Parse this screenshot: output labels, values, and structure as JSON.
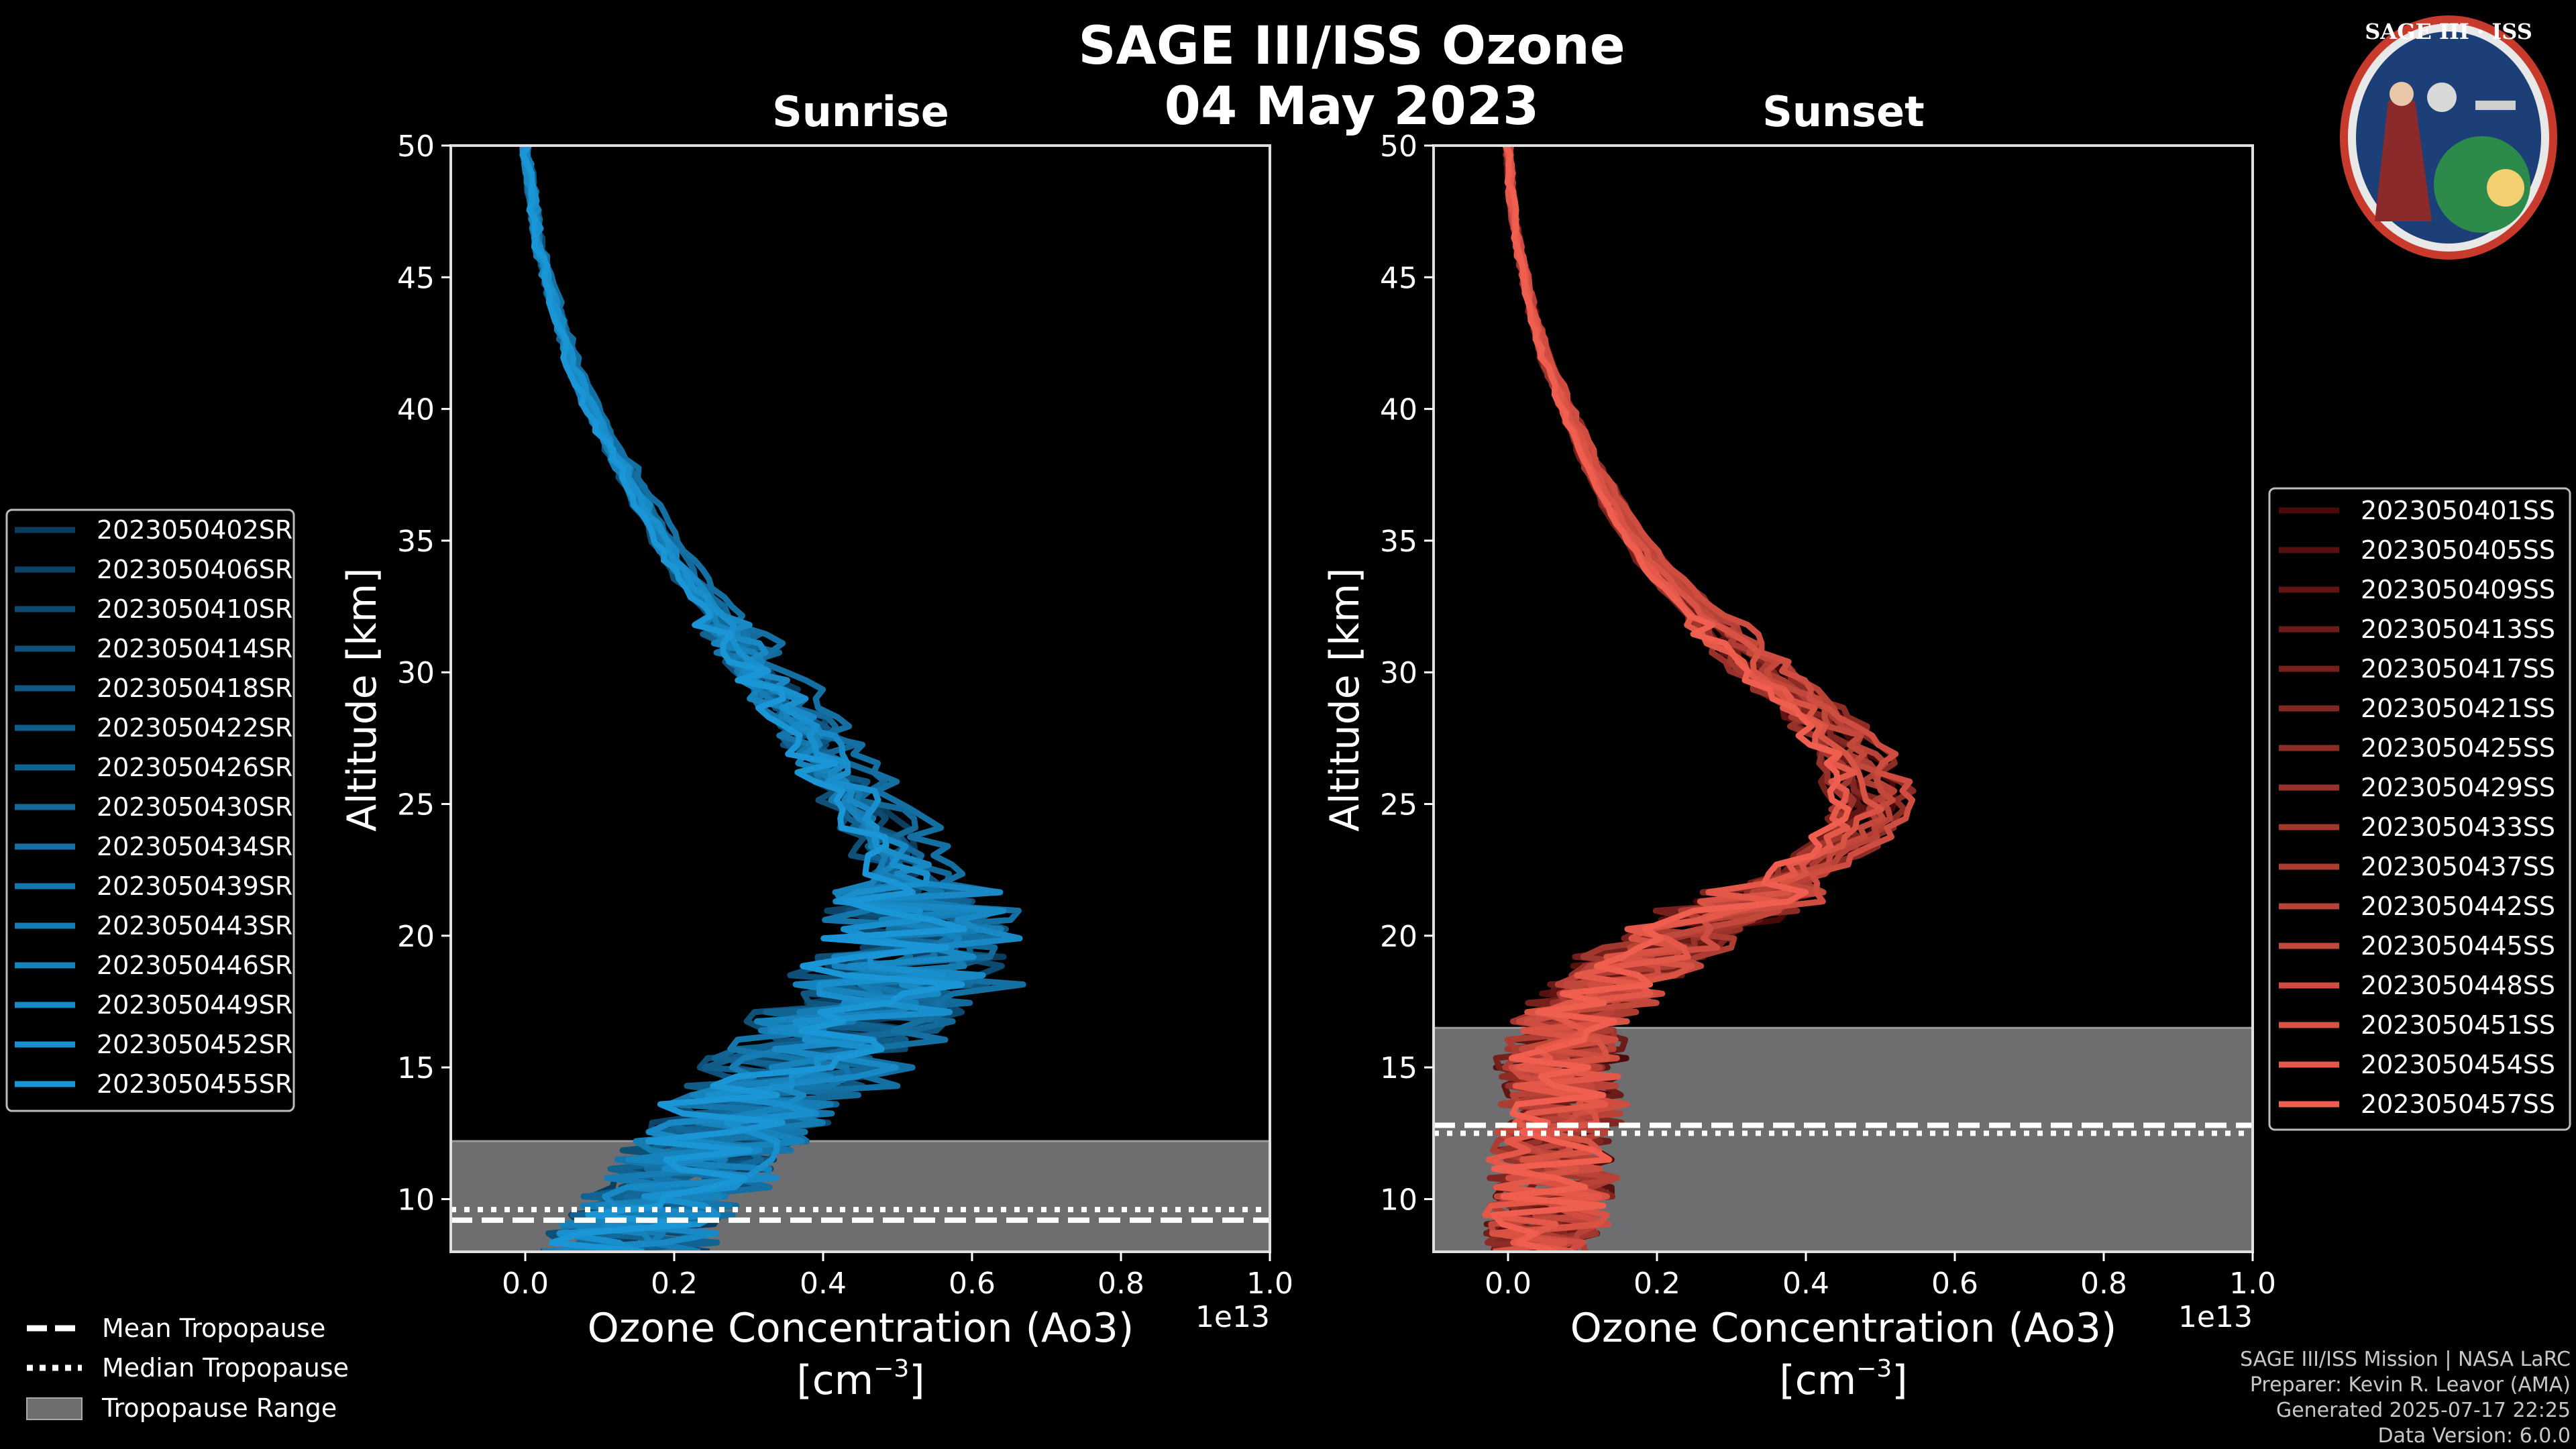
{
  "title_line1": "SAGE III/ISS Ozone",
  "title_line2": "04 May 2023",
  "logo": {
    "text": "SAGE III · ISS"
  },
  "panels": {
    "left_title": "Sunrise",
    "right_title": "Sunset",
    "ylabel": "Altitude [km]",
    "xlabel_line1": "Ozone Concentration (Ao3)",
    "xlabel_line2": "[cm",
    "xlabel_exp": "−3",
    "xlabel_close": "]",
    "xscale_label": "1e13"
  },
  "legend_sr": [
    "2023050402SR",
    "2023050406SR",
    "2023050410SR",
    "2023050414SR",
    "2023050418SR",
    "2023050422SR",
    "2023050426SR",
    "2023050430SR",
    "2023050434SR",
    "2023050439SR",
    "2023050443SR",
    "2023050446SR",
    "2023050449SR",
    "2023050452SR",
    "2023050455SR"
  ],
  "legend_ss": [
    "2023050401SS",
    "2023050405SS",
    "2023050409SS",
    "2023050413SS",
    "2023050417SS",
    "2023050421SS",
    "2023050425SS",
    "2023050429SS",
    "2023050433SS",
    "2023050437SS",
    "2023050442SS",
    "2023050445SS",
    "2023050448SS",
    "2023050451SS",
    "2023050454SS",
    "2023050457SS"
  ],
  "tropo_legend": {
    "mean": "Mean Tropopause",
    "median": "Median Tropopause",
    "range": "Tropopause Range"
  },
  "footer": {
    "line1": "SAGE III/ISS Mission | NASA LaRC",
    "line2": "Preparer: Kevin R. Leavor (AMA)",
    "line3": "Generated 2025-07-17 22:25",
    "line4": "Data Version: 6.0.0"
  },
  "colors": {
    "sr_dark": "#0b3d5e",
    "sr_light": "#1a96d6",
    "ss_dark": "#4a0a0a",
    "ss_light": "#ef5e4e",
    "tropo_fill": "#6e6e70"
  },
  "chart_data": [
    {
      "type": "line",
      "title": "Sunrise",
      "xlabel": "Ozone Concentration (Ao3) [cm^-3]",
      "ylabel": "Altitude [km]",
      "xscale": 10000000000000.0,
      "xlim": [
        -0.1,
        1.0
      ],
      "ylim": [
        8,
        50
      ],
      "xticks": [
        0.0,
        0.2,
        0.4,
        0.6,
        0.8,
        1.0
      ],
      "yticks": [
        10,
        15,
        20,
        25,
        30,
        35,
        40,
        45,
        50
      ],
      "tropopause": {
        "range": [
          8,
          12.2
        ],
        "mean": 9.2,
        "median": 9.6
      },
      "base_profile": {
        "altitude": [
          50,
          48,
          46,
          44,
          42,
          40,
          38,
          36,
          34,
          32,
          30,
          28,
          26,
          24,
          22,
          21,
          20,
          19,
          18,
          17,
          16,
          15,
          14,
          13,
          12,
          11,
          10,
          9,
          8
        ],
        "ozone": [
          0.0,
          0.01,
          0.02,
          0.04,
          0.06,
          0.09,
          0.13,
          0.17,
          0.21,
          0.27,
          0.32,
          0.38,
          0.43,
          0.49,
          0.53,
          0.54,
          0.55,
          0.53,
          0.5,
          0.46,
          0.42,
          0.38,
          0.34,
          0.3,
          0.27,
          0.24,
          0.2,
          0.17,
          0.14
        ]
      },
      "series_names": [
        "2023050402SR",
        "2023050406SR",
        "2023050410SR",
        "2023050414SR",
        "2023050418SR",
        "2023050422SR",
        "2023050426SR",
        "2023050430SR",
        "2023050434SR",
        "2023050439SR",
        "2023050443SR",
        "2023050446SR",
        "2023050449SR",
        "2023050452SR",
        "2023050455SR"
      ]
    },
    {
      "type": "line",
      "title": "Sunset",
      "xlabel": "Ozone Concentration (Ao3) [cm^-3]",
      "ylabel": "Altitude [km]",
      "xscale": 10000000000000.0,
      "xlim": [
        -0.1,
        1.0
      ],
      "ylim": [
        8,
        50
      ],
      "xticks": [
        0.0,
        0.2,
        0.4,
        0.6,
        0.8,
        1.0
      ],
      "yticks": [
        10,
        15,
        20,
        25,
        30,
        35,
        40,
        45,
        50
      ],
      "tropopause": {
        "range": [
          8,
          16.5
        ],
        "mean": 12.8,
        "median": 12.5
      },
      "base_profile": {
        "altitude": [
          50,
          48,
          46,
          44,
          42,
          40,
          38,
          36,
          34,
          32,
          30,
          28,
          27,
          26,
          25,
          24,
          23,
          22,
          21,
          20,
          19,
          18,
          17,
          16,
          15,
          14,
          13,
          12,
          11,
          10,
          9,
          8
        ],
        "ozone": [
          0.0,
          0.005,
          0.015,
          0.03,
          0.05,
          0.08,
          0.11,
          0.15,
          0.2,
          0.27,
          0.35,
          0.43,
          0.46,
          0.48,
          0.49,
          0.47,
          0.43,
          0.37,
          0.3,
          0.24,
          0.18,
          0.13,
          0.1,
          0.08,
          0.07,
          0.07,
          0.07,
          0.06,
          0.06,
          0.06,
          0.05,
          0.05
        ]
      },
      "series_names": [
        "2023050401SS",
        "2023050405SS",
        "2023050409SS",
        "2023050413SS",
        "2023050417SS",
        "2023050421SS",
        "2023050425SS",
        "2023050429SS",
        "2023050433SS",
        "2023050437SS",
        "2023050442SS",
        "2023050445SS",
        "2023050448SS",
        "2023050451SS",
        "2023050454SS",
        "2023050457SS"
      ]
    }
  ]
}
